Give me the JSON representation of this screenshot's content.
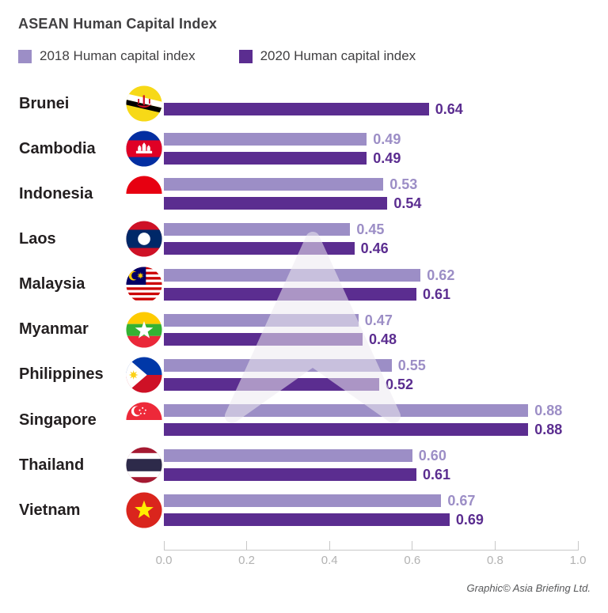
{
  "title": "ASEAN Human Capital Index",
  "legend": [
    {
      "label": "2018 Human capital index",
      "color": "#9c8ec6"
    },
    {
      "label": "2020 Human capital index",
      "color": "#5b2d90"
    }
  ],
  "footer": "Graphic© Asia Briefing Ltd.",
  "watermark_icon": "asia-briefing-logo",
  "colors": {
    "series_2018": "#9c8ec6",
    "series_2020": "#5b2d90",
    "title_text": "#414042",
    "country_text": "#231f20",
    "axis_line": "#c8c8c8",
    "axis_text": "#b2b2b2",
    "credit_text": "#57585a",
    "background": "#ffffff"
  },
  "chart_data": {
    "type": "bar",
    "orientation": "horizontal",
    "title": "ASEAN Human Capital Index",
    "categories": [
      "Brunei",
      "Cambodia",
      "Indonesia",
      "Laos",
      "Malaysia",
      "Myanmar",
      "Philippines",
      "Singapore",
      "Thailand",
      "Vietnam"
    ],
    "flag_icons": [
      "brunei-flag-icon",
      "cambodia-flag-icon",
      "indonesia-flag-icon",
      "laos-flag-icon",
      "malaysia-flag-icon",
      "myanmar-flag-icon",
      "philippines-flag-icon",
      "singapore-flag-icon",
      "thailand-flag-icon",
      "vietnam-flag-icon"
    ],
    "series": [
      {
        "name": "2018 Human capital index",
        "color": "#9c8ec6",
        "values": [
          null,
          0.49,
          0.53,
          0.45,
          0.62,
          0.47,
          0.55,
          0.88,
          0.6,
          0.67
        ]
      },
      {
        "name": "2020 Human capital index",
        "color": "#5b2d90",
        "values": [
          0.64,
          0.49,
          0.54,
          0.46,
          0.61,
          0.48,
          0.52,
          0.88,
          0.61,
          0.69
        ]
      }
    ],
    "xlim": [
      0,
      1
    ],
    "x_ticks": [
      "0.0",
      "0.2",
      "0.4",
      "0.6",
      "0.8",
      "1.0"
    ],
    "value_labels": true,
    "value_label_decimals": 2,
    "legend_position": "top",
    "grid": false
  }
}
